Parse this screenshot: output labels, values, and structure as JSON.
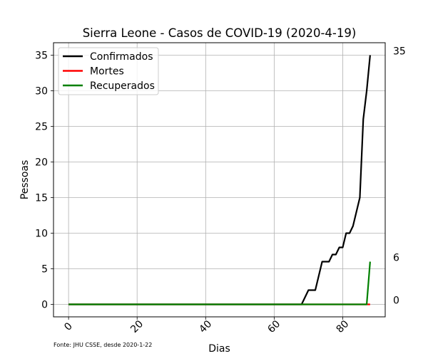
{
  "chart_data": {
    "type": "line",
    "title": "Sierra Leone - Casos de COVID-19 (2020-4-19)",
    "xlabel": "Dias",
    "ylabel": "Pessoas",
    "source_note": "Fonte: JHU CSSE, desde 2020-1-22",
    "xlim": [
      -4.4,
      92.4
    ],
    "ylim": [
      -1.75,
      36.75
    ],
    "xticks": [
      0,
      20,
      40,
      60,
      80
    ],
    "yticks": [
      0,
      5,
      10,
      15,
      20,
      25,
      30,
      35
    ],
    "grid": true,
    "legend_position": "top-left",
    "end_labels": [
      "35",
      "6",
      "0"
    ],
    "series": [
      {
        "name": "Confirmados",
        "color": "#000000",
        "x": [
          0,
          68,
          69,
          70,
          71,
          72,
          73,
          74,
          75,
          76,
          77,
          78,
          79,
          80,
          81,
          82,
          83,
          84,
          85,
          86,
          87,
          88
        ],
        "y": [
          0,
          0,
          1,
          2,
          2,
          2,
          4,
          6,
          6,
          6,
          7,
          7,
          8,
          8,
          10,
          10,
          11,
          13,
          15,
          26,
          30,
          35
        ]
      },
      {
        "name": "Mortes",
        "color": "#ff0000",
        "x": [
          0,
          88
        ],
        "y": [
          0,
          0
        ]
      },
      {
        "name": "Recuperados",
        "color": "#008000",
        "x": [
          0,
          87,
          88
        ],
        "y": [
          0,
          0,
          6
        ]
      }
    ]
  }
}
